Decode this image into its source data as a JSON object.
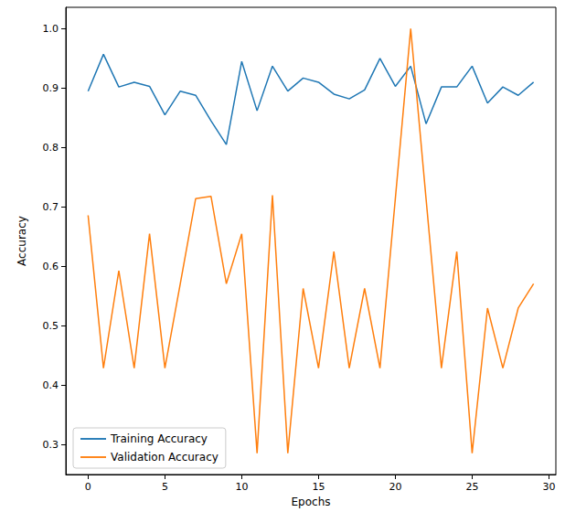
{
  "chart_data": {
    "type": "line",
    "x_label": "Epochs",
    "y_label": "Accuracy",
    "x": [
      0,
      1,
      2,
      3,
      4,
      5,
      6,
      7,
      8,
      9,
      10,
      11,
      12,
      13,
      14,
      15,
      16,
      17,
      18,
      19,
      20,
      21,
      22,
      23,
      24,
      25,
      26,
      27,
      28,
      29
    ],
    "series": [
      {
        "name": "Training Accuracy",
        "color": "#1f77b4",
        "values": [
          0.895,
          0.957,
          0.902,
          0.91,
          0.903,
          0.855,
          0.895,
          0.888,
          0.845,
          0.805,
          0.945,
          0.862,
          0.937,
          0.895,
          0.917,
          0.91,
          0.89,
          0.882,
          0.897,
          0.95,
          0.903,
          0.937,
          0.84,
          0.902,
          0.902,
          0.937,
          0.875,
          0.902,
          0.888,
          0.91
        ]
      },
      {
        "name": "Validation Accuracy",
        "color": "#ff7f0e",
        "values": [
          0.686,
          0.429,
          0.593,
          0.429,
          0.655,
          0.429,
          0.571,
          0.714,
          0.718,
          0.571,
          0.655,
          0.286,
          0.72,
          0.286,
          0.563,
          0.429,
          0.625,
          0.429,
          0.563,
          0.429,
          0.714,
          1.0,
          0.714,
          0.429,
          0.625,
          0.286,
          0.53,
          0.429,
          0.53,
          0.571
        ]
      }
    ],
    "xlim": [
      -1.45,
      30.45
    ],
    "xticks": [
      0,
      5,
      10,
      15,
      20,
      25,
      30
    ],
    "ylim": [
      0.25,
      1.036
    ],
    "yticks": [
      0.3,
      0.4,
      0.5,
      0.6,
      0.7,
      0.8,
      0.9,
      {
        "value": 1,
        "label": "1.0"
      }
    ],
    "grid": false,
    "legend": "lower left"
  }
}
